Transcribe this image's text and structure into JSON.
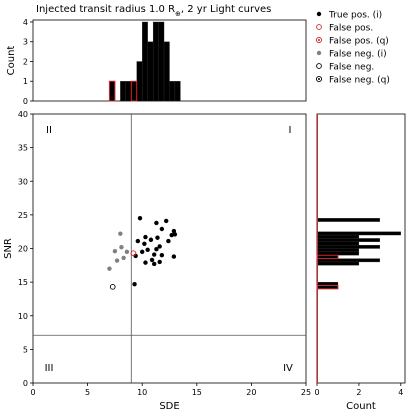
{
  "chart_data": [
    {
      "id": "hist_sde",
      "type": "bar",
      "title": "Injected transit radius 1.0 R",
      "title_sub": "⊕",
      "title_suffix": ", 2 yr Light curves",
      "ylabel": "Count",
      "xlim": [
        0,
        25
      ],
      "ylim": [
        0,
        4.1
      ],
      "yticks": [
        0,
        1,
        2,
        3,
        4
      ],
      "bin_width": 0.5,
      "bars": [
        {
          "x": 9.5,
          "value": 2,
          "series": "true"
        },
        {
          "x": 10.0,
          "value": 4,
          "series": "true"
        },
        {
          "x": 10.5,
          "value": 3,
          "series": "true"
        },
        {
          "x": 11.0,
          "value": 4,
          "series": "true"
        },
        {
          "x": 11.5,
          "value": 4,
          "series": "true"
        },
        {
          "x": 12.0,
          "value": 3,
          "series": "true"
        },
        {
          "x": 12.5,
          "value": 1,
          "series": "true"
        },
        {
          "x": 13.0,
          "value": 1,
          "series": "true"
        },
        {
          "x": 7.0,
          "value": 1,
          "series": "neg"
        },
        {
          "x": 8.0,
          "value": 1,
          "series": "neg"
        },
        {
          "x": 8.5,
          "value": 1,
          "series": "neg"
        },
        {
          "x": 9.0,
          "value": 1,
          "series": "neg"
        },
        {
          "x": 7.0,
          "value": 1,
          "series": "false_pos"
        },
        {
          "x": 9.0,
          "value": 1,
          "series": "false_pos"
        }
      ]
    },
    {
      "id": "scatter",
      "type": "scatter",
      "xlabel": "SDE",
      "ylabel": "SNR",
      "xlim": [
        0,
        25
      ],
      "ylim": [
        0,
        40
      ],
      "xticks": [
        0,
        5,
        10,
        15,
        20,
        25
      ],
      "yticks": [
        0,
        5,
        10,
        15,
        20,
        25,
        30,
        35,
        40
      ],
      "vline": 9,
      "hline": 7.1,
      "quadrants": {
        "q1": "I",
        "q2": "II",
        "q3": "III",
        "q4": "IV"
      },
      "series": [
        {
          "name": "True pos. (i)",
          "marker": "filled",
          "color": "#000000",
          "points": [
            [
              9.8,
              24.5
            ],
            [
              12.2,
              24.1
            ],
            [
              11.3,
              23.8
            ],
            [
              11.8,
              22.9
            ],
            [
              12.9,
              22.6
            ],
            [
              13.0,
              22.1
            ],
            [
              12.7,
              22.0
            ],
            [
              10.3,
              21.7
            ],
            [
              11.4,
              21.6
            ],
            [
              10.8,
              21.3
            ],
            [
              9.6,
              21.1
            ],
            [
              12.4,
              21.1
            ],
            [
              10.2,
              20.7
            ],
            [
              11.6,
              20.3
            ],
            [
              11.3,
              19.9
            ],
            [
              10.5,
              19.8
            ],
            [
              10.0,
              19.5
            ],
            [
              11.1,
              19.1
            ],
            [
              11.8,
              19.0
            ],
            [
              9.4,
              18.9
            ],
            [
              12.9,
              18.8
            ],
            [
              10.9,
              18.3
            ],
            [
              11.6,
              18.0
            ],
            [
              10.3,
              17.9
            ],
            [
              11.1,
              17.7
            ],
            [
              9.3,
              14.7
            ]
          ]
        },
        {
          "name": "False pos.",
          "marker": "open",
          "color": "#d62728",
          "points": [
            [
              9.2,
              19.3
            ]
          ]
        },
        {
          "name": "False pos. (q)",
          "marker": "dotted",
          "color": "#d62728",
          "points": []
        },
        {
          "name": "False neg. (i)",
          "marker": "filled",
          "color": "#808080",
          "points": [
            [
              8.0,
              22.2
            ],
            [
              8.1,
              20.2
            ],
            [
              7.5,
              19.6
            ],
            [
              8.6,
              19.5
            ],
            [
              8.3,
              18.6
            ],
            [
              7.7,
              18.2
            ],
            [
              7.0,
              17.0
            ]
          ]
        },
        {
          "name": "False neg.",
          "marker": "open",
          "color": "#000000",
          "points": [
            [
              7.3,
              14.3
            ]
          ]
        },
        {
          "name": "False neg. (q)",
          "marker": "dotted",
          "color": "#000000",
          "points": []
        }
      ]
    },
    {
      "id": "hist_snr",
      "type": "bar",
      "orientation": "horizontal",
      "xlabel": "Count",
      "xlim": [
        0,
        4.2
      ],
      "xticks": [
        0,
        2,
        4
      ],
      "ylim": [
        0,
        40
      ],
      "bin_width": 0.5,
      "bars": [
        {
          "y": 24.0,
          "value": 3,
          "series": "true"
        },
        {
          "y": 22.0,
          "value": 4,
          "series": "true"
        },
        {
          "y": 21.5,
          "value": 2,
          "series": "true"
        },
        {
          "y": 21.0,
          "value": 3,
          "series": "true"
        },
        {
          "y": 20.5,
          "value": 2,
          "series": "true"
        },
        {
          "y": 20.0,
          "value": 3,
          "series": "true"
        },
        {
          "y": 19.5,
          "value": 2,
          "series": "true"
        },
        {
          "y": 19.0,
          "value": 2,
          "series": "true"
        },
        {
          "y": 18.5,
          "value": 1,
          "series": "true"
        },
        {
          "y": 18.0,
          "value": 3,
          "series": "true"
        },
        {
          "y": 17.5,
          "value": 2,
          "series": "true"
        },
        {
          "y": 14.5,
          "value": 1,
          "series": "true"
        },
        {
          "y": 18.5,
          "value": 1,
          "series": "false_pos"
        },
        {
          "y": 14.0,
          "value": 1,
          "series": "false_pos"
        }
      ]
    }
  ],
  "legend": {
    "items": [
      {
        "label": "True pos. (i)",
        "marker": "filled",
        "color": "#000000"
      },
      {
        "label": "False pos.",
        "marker": "open",
        "color": "#d62728"
      },
      {
        "label": "False pos. (q)",
        "marker": "dotted",
        "color": "#d62728"
      },
      {
        "label": "False neg. (i)",
        "marker": "filled",
        "color": "#808080"
      },
      {
        "label": "False neg.",
        "marker": "open",
        "color": "#000000"
      },
      {
        "label": "False neg. (q)",
        "marker": "dotted",
        "color": "#000000"
      }
    ]
  }
}
